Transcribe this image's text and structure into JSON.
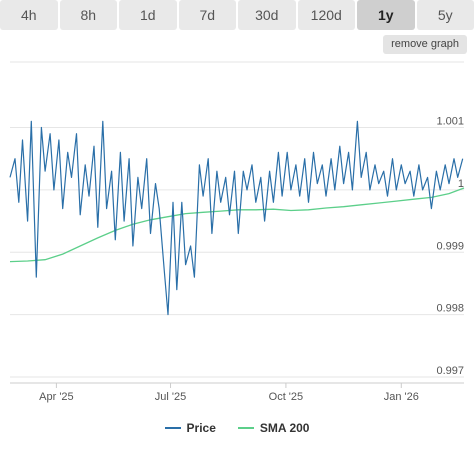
{
  "tabs": [
    {
      "label": "4h",
      "active": false
    },
    {
      "label": "8h",
      "active": false
    },
    {
      "label": "1d",
      "active": false
    },
    {
      "label": "7d",
      "active": false
    },
    {
      "label": "30d",
      "active": false
    },
    {
      "label": "120d",
      "active": false
    },
    {
      "label": "1y",
      "active": true
    },
    {
      "label": "5y",
      "active": false
    }
  ],
  "remove_button_label": "remove graph",
  "colors": {
    "price": "#2a6fa8",
    "sma": "#5ccf8a",
    "grid": "#e6e6e6"
  },
  "chart_data": {
    "type": "line",
    "x_tick_labels": [
      "Apr '25",
      "Jul '25",
      "Oct '25",
      "Jan '26"
    ],
    "y_tick_labels": [
      "1.001",
      "1",
      "0.999",
      "0.998",
      "0.997"
    ],
    "ylim": [
      0.997,
      1.001
    ],
    "x_range": [
      "2025-02-23",
      "2026-02-20"
    ],
    "series": [
      {
        "name": "Price",
        "x": [
          "2025-02-23",
          "2025-02-27",
          "2025-03-02",
          "2025-03-05",
          "2025-03-09",
          "2025-03-12",
          "2025-03-16",
          "2025-03-20",
          "2025-03-23",
          "2025-03-27",
          "2025-03-30",
          "2025-04-03",
          "2025-04-06",
          "2025-04-10",
          "2025-04-13",
          "2025-04-17",
          "2025-04-20",
          "2025-04-24",
          "2025-04-27",
          "2025-05-01",
          "2025-05-04",
          "2025-05-08",
          "2025-05-11",
          "2025-05-15",
          "2025-05-18",
          "2025-05-22",
          "2025-05-25",
          "2025-05-29",
          "2025-06-01",
          "2025-06-05",
          "2025-06-08",
          "2025-06-12",
          "2025-06-15",
          "2025-06-19",
          "2025-06-22",
          "2025-06-26",
          "2025-06-29",
          "2025-07-03",
          "2025-07-06",
          "2025-07-10",
          "2025-07-13",
          "2025-07-17",
          "2025-07-20",
          "2025-07-24",
          "2025-07-27",
          "2025-07-31",
          "2025-08-03",
          "2025-08-07",
          "2025-08-10",
          "2025-08-14",
          "2025-08-17",
          "2025-08-21",
          "2025-08-24",
          "2025-08-28",
          "2025-08-31",
          "2025-09-04",
          "2025-09-07",
          "2025-09-11",
          "2025-09-14",
          "2025-09-18",
          "2025-09-21",
          "2025-09-25",
          "2025-09-28",
          "2025-10-02",
          "2025-10-05",
          "2025-10-09",
          "2025-10-12",
          "2025-10-16",
          "2025-10-19",
          "2025-10-23",
          "2025-10-26",
          "2025-10-30",
          "2025-11-02",
          "2025-11-06",
          "2025-11-09",
          "2025-11-13",
          "2025-11-16",
          "2025-11-20",
          "2025-11-23",
          "2025-11-27",
          "2025-11-30",
          "2025-12-04",
          "2025-12-07",
          "2025-12-11",
          "2025-12-14",
          "2025-12-18",
          "2025-12-21",
          "2025-12-25",
          "2025-12-28",
          "2026-01-01",
          "2026-01-04",
          "2026-01-08",
          "2026-01-11",
          "2026-01-15",
          "2026-01-18",
          "2026-01-22",
          "2026-01-25",
          "2026-01-29",
          "2026-02-01",
          "2026-02-05",
          "2026-02-08",
          "2026-02-12",
          "2026-02-15",
          "2026-02-19"
        ],
        "values": [
          1.0002,
          1.0005,
          0.9998,
          1.0008,
          0.9995,
          1.0011,
          0.9986,
          1.001,
          1.0003,
          1.0009,
          1.0,
          1.0008,
          0.9997,
          1.0006,
          1.0002,
          1.0009,
          0.9996,
          1.0004,
          0.9999,
          1.0007,
          0.9994,
          1.0011,
          0.9997,
          1.0003,
          0.9992,
          1.0006,
          0.9995,
          1.0005,
          0.9991,
          1.0002,
          0.9997,
          1.0005,
          0.9993,
          1.0001,
          0.9997,
          0.9987,
          0.998,
          0.9998,
          0.9984,
          0.9998,
          0.9988,
          0.9991,
          0.9986,
          1.0004,
          0.9999,
          1.0005,
          0.9993,
          1.0003,
          0.9998,
          1.0002,
          0.9996,
          1.0003,
          0.9993,
          1.0003,
          1.0,
          1.0004,
          0.9998,
          1.0002,
          0.9995,
          1.0003,
          0.9998,
          1.0006,
          0.9999,
          1.0006,
          1.0,
          1.0004,
          0.9999,
          1.0005,
          0.9998,
          1.0006,
          1.0001,
          1.0004,
          0.9999,
          1.0005,
          1.0,
          1.0007,
          1.0001,
          1.0006,
          1.0,
          1.0011,
          1.0002,
          1.0006,
          1.0,
          1.0004,
          1.0001,
          1.0003,
          0.9999,
          1.0005,
          1.0,
          1.0004,
          1.0001,
          1.0003,
          0.9999,
          1.0004,
          1.0,
          1.0002,
          0.9997,
          1.0003,
          1.0,
          1.0004,
          1.0001,
          1.0005,
          1.0002,
          1.0005
        ]
      },
      {
        "name": "SMA 200",
        "x": [
          "2025-02-23",
          "2025-03-09",
          "2025-03-23",
          "2025-04-06",
          "2025-04-20",
          "2025-05-04",
          "2025-05-18",
          "2025-06-01",
          "2025-06-15",
          "2025-06-29",
          "2025-07-13",
          "2025-07-27",
          "2025-08-10",
          "2025-08-24",
          "2025-09-07",
          "2025-09-21",
          "2025-10-05",
          "2025-10-19",
          "2025-11-02",
          "2025-11-16",
          "2025-11-30",
          "2025-12-14",
          "2025-12-28",
          "2026-01-11",
          "2026-01-25",
          "2026-02-08",
          "2026-02-20"
        ],
        "values": [
          0.99885,
          0.99886,
          0.99888,
          0.99897,
          0.9991,
          0.99923,
          0.99935,
          0.99945,
          0.99952,
          0.99957,
          0.99962,
          0.99964,
          0.99966,
          0.99968,
          0.99968,
          0.99969,
          0.99967,
          0.99968,
          0.99971,
          0.99973,
          0.99976,
          0.99979,
          0.99982,
          0.99985,
          0.99988,
          0.99994,
          1.00003
        ]
      }
    ]
  }
}
